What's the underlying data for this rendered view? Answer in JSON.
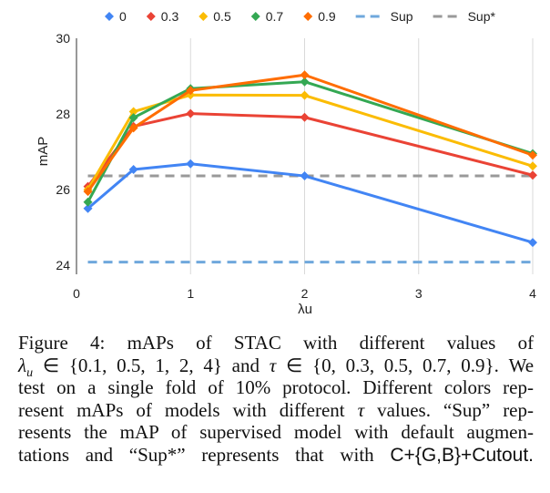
{
  "chart_data": {
    "type": "line",
    "xlabel": "λu",
    "ylabel": "mAP",
    "xlim": [
      0,
      4
    ],
    "ylim": [
      24,
      30
    ],
    "xticks": [
      "0",
      "1",
      "2",
      "3",
      "4"
    ],
    "yticks": [
      "24",
      "26",
      "28",
      "30"
    ],
    "grid": "vertical",
    "legend_position": "top",
    "x": [
      0.1,
      0.5,
      1,
      2,
      4
    ],
    "series": [
      {
        "name": "0",
        "color": "#4285f4",
        "values": [
          25.5,
          26.53,
          26.68,
          26.36,
          24.6
        ]
      },
      {
        "name": "0.3",
        "color": "#ea4335",
        "values": [
          26.08,
          27.67,
          28.01,
          27.91,
          26.38
        ]
      },
      {
        "name": "0.5",
        "color": "#fbbc04",
        "values": [
          26.0,
          28.06,
          28.5,
          28.49,
          26.62
        ]
      },
      {
        "name": "0.7",
        "color": "#34a853",
        "values": [
          25.67,
          27.9,
          28.67,
          28.85,
          26.95
        ]
      },
      {
        "name": "0.9",
        "color": "#ff6d01",
        "values": [
          25.95,
          27.63,
          28.62,
          29.03,
          26.91
        ]
      }
    ],
    "reference_lines": [
      {
        "name": "Sup",
        "color": "#6fa8dc",
        "value": 24.08,
        "style": "dashed"
      },
      {
        "name": "Sup*",
        "color": "#999999",
        "value": 26.36,
        "style": "dashed"
      }
    ]
  },
  "caption": {
    "line1": [
      "Figure 4:",
      "mAPs",
      "of",
      "STAC",
      "with",
      "different",
      "values",
      "of"
    ],
    "line2": {
      "lambda": "λ",
      "lambda_sub": "u",
      "set1": " ∈ {0.1, 0.5, 1, 2, 4}",
      "and": "and",
      "tau": "τ",
      "set2": " ∈ {0, 0.3, 0.5, 0.7, 0.9}.",
      "we": "We"
    },
    "line3": "test on a single fold of 10% protocol. Different colors rep-",
    "line4a": "resent mAPs of models with different ",
    "line4tau": "τ",
    "line4b": " values. “Sup” rep-",
    "line5": "resents the mAP of supervised model with default augmen-",
    "line6a": "tations and “Sup*” represents that with ",
    "line6b": "C+{G,B}+Cutout."
  }
}
